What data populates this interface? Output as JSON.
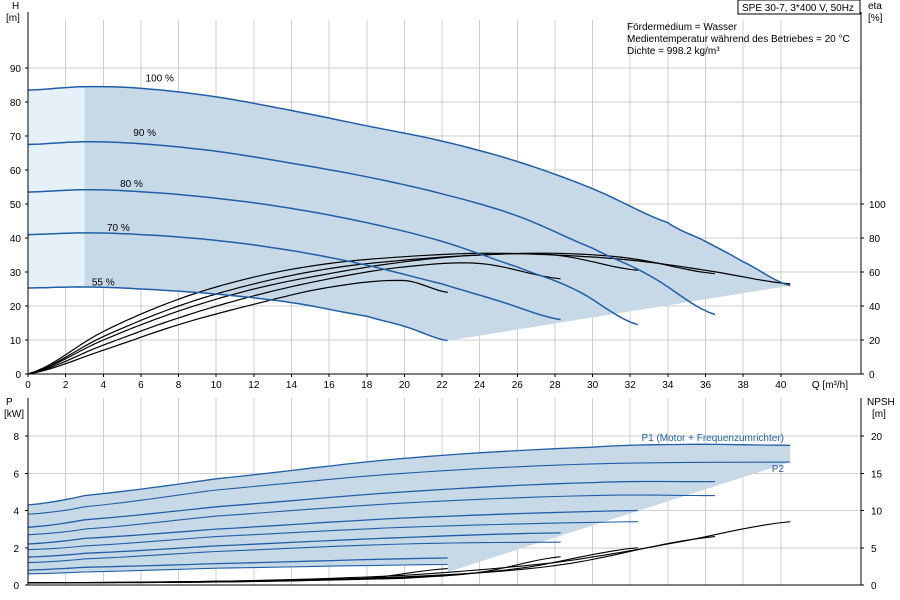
{
  "model_label": "SPE 30-7, 3*400 V, 50Hz",
  "info": [
    "Fördermedium = Wasser",
    "Medientemperatur während des Betriebes = 20 °C",
    "Dichte = 998.2 kg/m³"
  ],
  "colors": {
    "curve": "#1f5fa8",
    "area": "#c7d8e6",
    "area_light": "#e6f0f8",
    "eff": "#000000",
    "grid": "#cfcfcf"
  },
  "chart_data": [
    {
      "type": "line",
      "panel": "head",
      "xlabel": "Q [m³/h]",
      "ylabel_left": [
        "H",
        "[m]"
      ],
      "ylabel_right": [
        "eta",
        "[%]"
      ],
      "xlim": [
        0,
        40
      ],
      "xticks": [
        0,
        2,
        4,
        6,
        8,
        10,
        12,
        14,
        16,
        18,
        20,
        22,
        24,
        26,
        28,
        30,
        32,
        34,
        36,
        38,
        40
      ],
      "ylim": [
        0,
        90
      ],
      "yticks": [
        0,
        10,
        20,
        30,
        40,
        50,
        60,
        70,
        80,
        90
      ],
      "y2lim": [
        0,
        120
      ],
      "y2ticks": [
        0,
        20,
        40,
        60,
        80,
        100
      ],
      "grid": true,
      "speed_labels": [
        {
          "text": "100 %",
          "x": 7,
          "y": 86
        },
        {
          "text": "90 %",
          "x": 6.2,
          "y": 70
        },
        {
          "text": "80 %",
          "x": 5.5,
          "y": 55
        },
        {
          "text": "70 %",
          "x": 4.8,
          "y": 42
        },
        {
          "text": "55 %",
          "x": 4,
          "y": 26
        }
      ],
      "series": [
        {
          "speed": 100,
          "x": [
            0,
            3,
            6,
            10,
            14,
            18,
            22,
            26,
            30,
            34,
            36,
            38,
            40.5
          ],
          "y": [
            83.5,
            84.5,
            84,
            81.5,
            77.5,
            73,
            68.5,
            62.5,
            54.5,
            44.5,
            39,
            33,
            26
          ]
        },
        {
          "speed": 90,
          "x": [
            0,
            3,
            6,
            10,
            14,
            18,
            22,
            26,
            30,
            33,
            36.5
          ],
          "y": [
            67.5,
            68.3,
            67.7,
            65.5,
            62,
            58,
            53,
            46.5,
            37,
            29,
            17.5
          ]
        },
        {
          "speed": 80,
          "x": [
            0,
            3,
            6,
            10,
            14,
            18,
            22,
            26,
            29,
            32.4
          ],
          "y": [
            53.5,
            54.2,
            53.6,
            51.7,
            48.7,
            44.5,
            39,
            31.5,
            25,
            14.5
          ]
        },
        {
          "speed": 70,
          "x": [
            0,
            3,
            6,
            10,
            14,
            18,
            22,
            25,
            28.3
          ],
          "y": [
            41,
            41.5,
            41,
            39.3,
            36.3,
            32,
            26.5,
            21.5,
            16
          ]
        },
        {
          "speed": 55,
          "x": [
            0,
            3,
            6,
            10,
            14,
            18,
            20,
            22.3
          ],
          "y": [
            25.3,
            25.6,
            25,
            23.5,
            21,
            17,
            14,
            9.8
          ]
        }
      ],
      "efficiency_series": [
        {
          "speed": 100,
          "x": [
            0,
            4,
            8,
            12,
            16,
            20,
            24,
            28,
            32,
            36,
            40.5
          ],
          "y": [
            0,
            25,
            44,
            57,
            65,
            69,
            71,
            70,
            67,
            61,
            53
          ]
        },
        {
          "speed": 90,
          "x": [
            0,
            4,
            8,
            12,
            16,
            20,
            24,
            28,
            32,
            36.5
          ],
          "y": [
            0,
            22,
            40,
            53,
            62,
            67,
            70,
            71,
            68,
            59
          ]
        },
        {
          "speed": 80,
          "x": [
            0,
            4,
            8,
            12,
            16,
            20,
            24,
            28,
            32.4
          ],
          "y": [
            0,
            20,
            37,
            50,
            59,
            66,
            70,
            70,
            61
          ]
        },
        {
          "speed": 70,
          "x": [
            0,
            4,
            8,
            12,
            16,
            20,
            24,
            28.3
          ],
          "y": [
            0,
            17,
            33,
            46,
            56,
            63,
            65,
            56
          ]
        },
        {
          "speed": 55,
          "x": [
            0,
            4,
            8,
            12,
            16,
            20,
            22.3
          ],
          "y": [
            0,
            14,
            29,
            41,
            51,
            55,
            48
          ]
        }
      ]
    },
    {
      "type": "line",
      "panel": "power",
      "xlim": [
        0,
        40
      ],
      "ylabel_left": [
        "P",
        "[kW]"
      ],
      "ylabel_right": [
        "NPSH",
        "[m]"
      ],
      "ylim": [
        0,
        9
      ],
      "yticks": [
        0,
        2,
        4,
        6,
        8
      ],
      "y2lim": [
        0,
        22.5
      ],
      "y2ticks": [
        0,
        5,
        10,
        15,
        20
      ],
      "grid": true,
      "series_labels": [
        "P1 (Motor + Frequenzumrichter)",
        "P2"
      ],
      "p1_series": [
        {
          "speed": 100,
          "x": [
            0,
            3,
            10,
            20,
            30,
            35,
            40.5
          ],
          "y": [
            4.3,
            4.8,
            5.7,
            6.8,
            7.4,
            7.55,
            7.5
          ]
        },
        {
          "speed": 90,
          "x": [
            0,
            3,
            10,
            20,
            30,
            36.5
          ],
          "y": [
            3.1,
            3.5,
            4.2,
            5.0,
            5.5,
            5.55
          ]
        },
        {
          "speed": 80,
          "x": [
            0,
            3,
            10,
            20,
            32.4
          ],
          "y": [
            2.2,
            2.5,
            3.0,
            3.6,
            4.0
          ]
        },
        {
          "speed": 70,
          "x": [
            0,
            3,
            10,
            20,
            28.3
          ],
          "y": [
            1.5,
            1.7,
            2.1,
            2.55,
            2.8
          ]
        },
        {
          "speed": 55,
          "x": [
            0,
            3,
            10,
            22.3
          ],
          "y": [
            0.8,
            0.95,
            1.15,
            1.45
          ]
        }
      ],
      "p2_series": [
        {
          "speed": 100,
          "x": [
            0,
            3,
            10,
            20,
            30,
            40.5
          ],
          "y": [
            3.8,
            4.2,
            5.1,
            6.0,
            6.5,
            6.6
          ]
        },
        {
          "speed": 90,
          "x": [
            0,
            3,
            10,
            20,
            30,
            36.5
          ],
          "y": [
            2.7,
            3.0,
            3.7,
            4.4,
            4.8,
            4.8
          ]
        },
        {
          "speed": 80,
          "x": [
            0,
            3,
            10,
            20,
            32.4
          ],
          "y": [
            1.9,
            2.1,
            2.6,
            3.1,
            3.4
          ]
        },
        {
          "speed": 70,
          "x": [
            0,
            3,
            10,
            20,
            28.3
          ],
          "y": [
            1.2,
            1.4,
            1.8,
            2.2,
            2.3
          ]
        },
        {
          "speed": 55,
          "x": [
            0,
            3,
            10,
            22.3
          ],
          "y": [
            0.6,
            0.7,
            0.9,
            1.1
          ]
        }
      ],
      "npsh_series": [
        {
          "speed": 100,
          "x": [
            0,
            10,
            20,
            28,
            34,
            40.5
          ],
          "y": [
            0.3,
            0.5,
            1.3,
            3,
            5.5,
            8.5
          ]
        },
        {
          "speed": 90,
          "x": [
            0,
            10,
            20,
            28,
            36.5
          ],
          "y": [
            0.3,
            0.5,
            1.1,
            2.6,
            6.5
          ]
        },
        {
          "speed": 80,
          "x": [
            0,
            10,
            20,
            26,
            32.4
          ],
          "y": [
            0.3,
            0.5,
            1.0,
            2.2,
            5
          ]
        },
        {
          "speed": 70,
          "x": [
            0,
            10,
            20,
            24,
            28.3
          ],
          "y": [
            0.3,
            0.4,
            0.9,
            1.7,
            3.8
          ]
        },
        {
          "speed": 55,
          "x": [
            0,
            10,
            18,
            22.3
          ],
          "y": [
            0.3,
            0.4,
            0.9,
            2.2
          ]
        }
      ]
    }
  ]
}
